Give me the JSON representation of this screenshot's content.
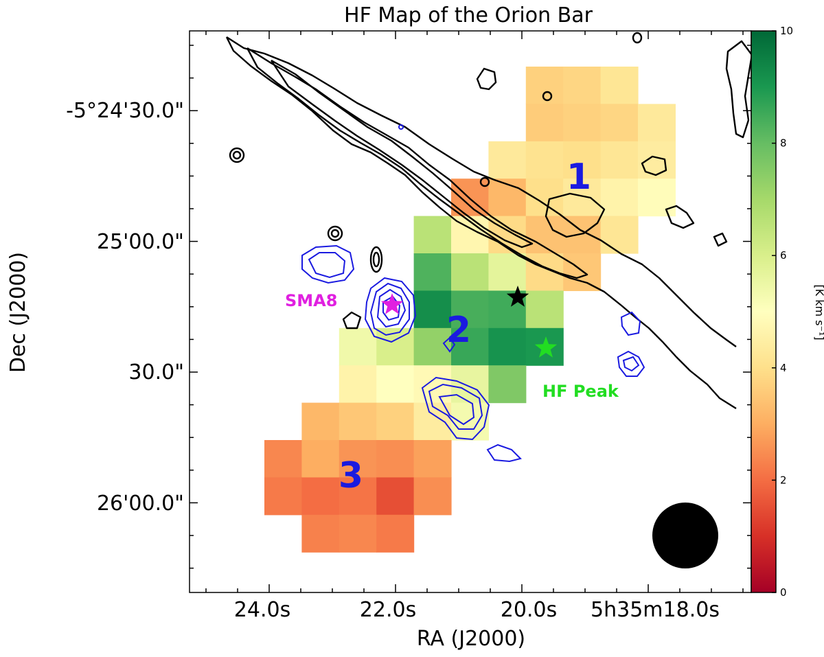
{
  "chart_data": {
    "type": "heatmap",
    "title": "HF Map of the Orion Bar",
    "xlabel": "RA (J2000)",
    "ylabel": "Dec (J2000)",
    "x_ticks": [
      "24.0s",
      "22.0s",
      "20.0s",
      "5h35m18.0s"
    ],
    "y_ticks": [
      "-5°24'30.0\"",
      "25'00.0\"",
      "30.0\"",
      "26'00.0\""
    ],
    "colorbar": {
      "label": "[K km s⁻¹]",
      "range": [
        0,
        10
      ],
      "ticks": [
        "0",
        "2",
        "4",
        "6",
        "8",
        "10"
      ],
      "colormap": "RdYlGn",
      "colors": [
        "#a50026",
        "#d73027",
        "#f46d43",
        "#fdae61",
        "#fee08b",
        "#ffffbf",
        "#d9ef8b",
        "#a6d96a",
        "#66bd63",
        "#1a9850",
        "#006837"
      ]
    },
    "cell_columns": 11,
    "cell_rows": 14,
    "cells": [
      {
        "col": 7,
        "row": 0,
        "value": 3.7
      },
      {
        "col": 8,
        "row": 0,
        "value": 3.8
      },
      {
        "col": 9,
        "row": 0,
        "value": 4.2
      },
      {
        "col": 7,
        "row": 1,
        "value": 3.6
      },
      {
        "col": 8,
        "row": 1,
        "value": 3.7
      },
      {
        "col": 9,
        "row": 1,
        "value": 3.8
      },
      {
        "col": 10,
        "row": 1,
        "value": 4.3
      },
      {
        "col": 6,
        "row": 2,
        "value": 4.3
      },
      {
        "col": 7,
        "row": 2,
        "value": 4.1
      },
      {
        "col": 8,
        "row": 2,
        "value": 4.0
      },
      {
        "col": 9,
        "row": 2,
        "value": 4.2
      },
      {
        "col": 10,
        "row": 2,
        "value": 4.4
      },
      {
        "col": 5,
        "row": 3,
        "value": 2.6
      },
      {
        "col": 6,
        "row": 3,
        "value": 3.2
      },
      {
        "col": 7,
        "row": 3,
        "value": 4.0
      },
      {
        "col": 8,
        "row": 3,
        "value": 4.3
      },
      {
        "col": 9,
        "row": 3,
        "value": 4.6
      },
      {
        "col": 10,
        "row": 3,
        "value": 4.9
      },
      {
        "col": 4,
        "row": 4,
        "value": 6.6
      },
      {
        "col": 5,
        "row": 4,
        "value": 4.7
      },
      {
        "col": 6,
        "row": 4,
        "value": 3.9
      },
      {
        "col": 7,
        "row": 4,
        "value": 3.4
      },
      {
        "col": 8,
        "row": 4,
        "value": 3.4
      },
      {
        "col": 9,
        "row": 4,
        "value": 4.2
      },
      {
        "col": 4,
        "row": 5,
        "value": 8.3
      },
      {
        "col": 5,
        "row": 5,
        "value": 6.6
      },
      {
        "col": 6,
        "row": 5,
        "value": 5.7
      },
      {
        "col": 7,
        "row": 5,
        "value": 3.9
      },
      {
        "col": 8,
        "row": 5,
        "value": 3.5
      },
      {
        "col": 4,
        "row": 6,
        "value": 9.2
      },
      {
        "col": 5,
        "row": 6,
        "value": 8.4
      },
      {
        "col": 6,
        "row": 6,
        "value": 8.5
      },
      {
        "col": 7,
        "row": 6,
        "value": 6.6
      },
      {
        "col": 2,
        "row": 7,
        "value": 5.4
      },
      {
        "col": 3,
        "row": 7,
        "value": 6.0
      },
      {
        "col": 4,
        "row": 7,
        "value": 7.3
      },
      {
        "col": 5,
        "row": 7,
        "value": 8.6
      },
      {
        "col": 6,
        "row": 7,
        "value": 9.1
      },
      {
        "col": 7,
        "row": 7,
        "value": 9.0
      },
      {
        "col": 2,
        "row": 8,
        "value": 4.6
      },
      {
        "col": 3,
        "row": 8,
        "value": 5.0
      },
      {
        "col": 4,
        "row": 8,
        "value": 4.8
      },
      {
        "col": 5,
        "row": 8,
        "value": 5.6
      },
      {
        "col": 6,
        "row": 8,
        "value": 7.6
      },
      {
        "col": 1,
        "row": 9,
        "value": 3.2
      },
      {
        "col": 2,
        "row": 9,
        "value": 3.5
      },
      {
        "col": 3,
        "row": 9,
        "value": 3.7
      },
      {
        "col": 4,
        "row": 9,
        "value": 4.4
      },
      {
        "col": 5,
        "row": 9,
        "value": 5.3
      },
      {
        "col": 0,
        "row": 10,
        "value": 2.4
      },
      {
        "col": 1,
        "row": 10,
        "value": 3.0
      },
      {
        "col": 2,
        "row": 10,
        "value": 2.6
      },
      {
        "col": 3,
        "row": 10,
        "value": 2.5
      },
      {
        "col": 4,
        "row": 10,
        "value": 2.8
      },
      {
        "col": 0,
        "row": 11,
        "value": 2.2
      },
      {
        "col": 1,
        "row": 11,
        "value": 2.0
      },
      {
        "col": 2,
        "row": 11,
        "value": 2.1
      },
      {
        "col": 3,
        "row": 11,
        "value": 1.5
      },
      {
        "col": 4,
        "row": 11,
        "value": 2.5
      },
      {
        "col": 1,
        "row": 12,
        "value": 2.3
      },
      {
        "col": 2,
        "row": 12,
        "value": 2.4
      },
      {
        "col": 3,
        "row": 12,
        "value": 2.2
      }
    ],
    "annotations": [
      {
        "text": "1",
        "color": "#1a1ae0"
      },
      {
        "text": "2",
        "color": "#1a1ae0"
      },
      {
        "text": "3",
        "color": "#1a1ae0"
      },
      {
        "text": "SMA8",
        "color": "#e020e0"
      },
      {
        "text": "HF Peak",
        "color": "#22dd22"
      }
    ],
    "markers": [
      {
        "name": "SMA8",
        "symbol": "star",
        "color": "#e020e0"
      },
      {
        "name": "black-star",
        "symbol": "star",
        "color": "#000000"
      },
      {
        "name": "HF Peak",
        "symbol": "star",
        "color": "#22dd22"
      }
    ],
    "contours": [
      {
        "set": "black",
        "color": "#000000"
      },
      {
        "set": "blue",
        "color": "#1a1ae0"
      }
    ],
    "beam": {
      "color": "#000000"
    }
  }
}
